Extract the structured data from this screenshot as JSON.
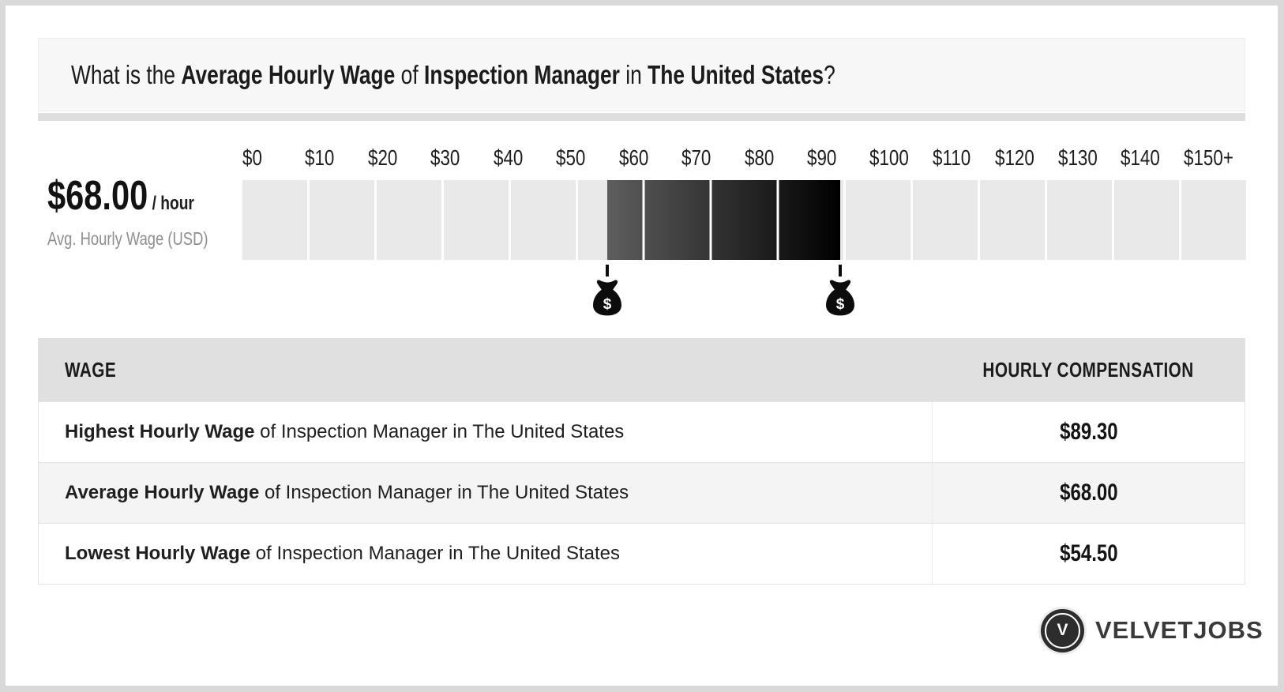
{
  "banner": {
    "question_parts": [
      {
        "text": "What is the ",
        "bold": false
      },
      {
        "text": "Average Hourly Wage",
        "bold": true
      },
      {
        "text": " of ",
        "bold": false
      },
      {
        "text": "Inspection Manager",
        "bold": true
      },
      {
        "text": " in ",
        "bold": false
      },
      {
        "text": "The United States",
        "bold": true
      },
      {
        "text": "?",
        "bold": false
      }
    ]
  },
  "stat": {
    "value": "$68.00",
    "unit": " / hour",
    "caption": "Avg. Hourly Wage (USD)"
  },
  "chart_data": {
    "type": "bar",
    "subtype": "range-scale",
    "ticks": [
      "$0",
      "$10",
      "$20",
      "$30",
      "$40",
      "$50",
      "$60",
      "$70",
      "$80",
      "$90",
      "$100",
      "$110",
      "$120",
      "$130",
      "$140",
      "$150+"
    ],
    "scale_min": 0,
    "scale_max": 150,
    "segments": 15,
    "low": 54.5,
    "high": 89.3,
    "average": 68.0,
    "low_label": "$54.50",
    "high_label": "$89.30",
    "average_label": "$68.00"
  },
  "table": {
    "headers": [
      "WAGE",
      "HOURLY COMPENSATION"
    ],
    "rows": [
      {
        "bold": "Highest Hourly Wage",
        "rest": " of Inspection Manager in The United States",
        "value": "$89.30"
      },
      {
        "bold": "Average Hourly Wage",
        "rest": " of Inspection Manager in The United States",
        "value": "$68.00"
      },
      {
        "bold": "Lowest Hourly Wage",
        "rest": " of Inspection Manager in The United States",
        "value": "$54.50"
      }
    ]
  },
  "logo": {
    "initial": "V",
    "text": "VELVETJOBS"
  },
  "colors": {
    "fill_start": "#5e5e5e",
    "fill_end": "#000000",
    "segment": "#e9e9e9",
    "banner_bg": "#f7f7f7",
    "header_bg": "#e0e0e0",
    "alt_row_bg": "#f4f4f4",
    "marker": "#0c0c0c"
  }
}
